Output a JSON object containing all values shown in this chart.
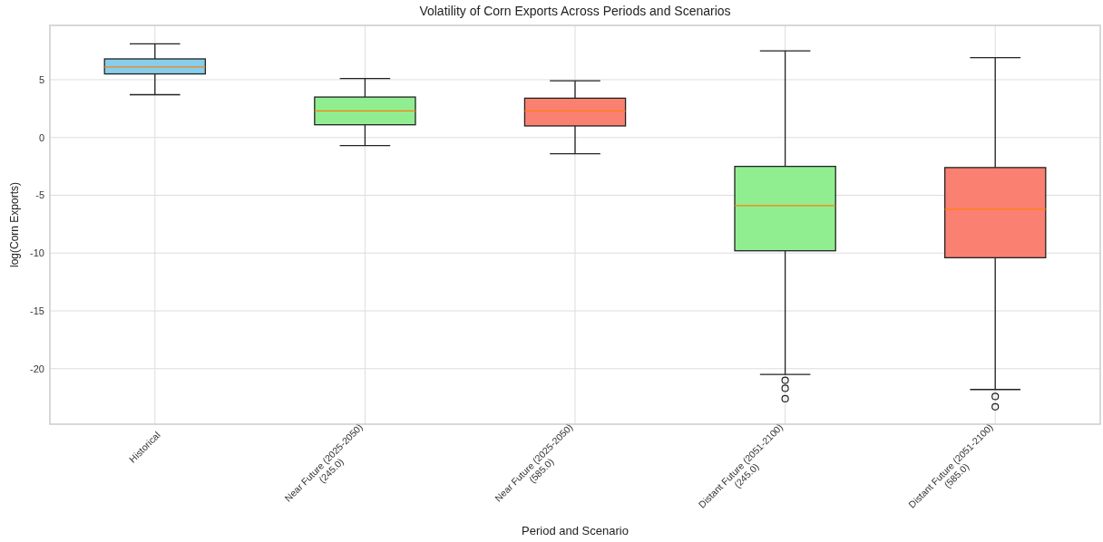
{
  "chart_data": {
    "type": "box",
    "title": "Volatility of Corn Exports Across Periods and Scenarios",
    "xlabel": "Period and Scenario",
    "ylabel": "log(Corn Exports)",
    "categories": [
      "Historical",
      "Near Future (2025-2050)\n(245.0)",
      "Near Future (2025-2050)\n(585.0)",
      "Distant Future (2051-2100)\n(245.0)",
      "Distant Future (2051-2100)\n(585.0)"
    ],
    "colors": [
      "#87ceeb",
      "#90ee90",
      "#fa8072",
      "#90ee90",
      "#fa8072"
    ],
    "boxes": [
      {
        "low": 3.7,
        "q1": 5.5,
        "median": 6.1,
        "q3": 6.8,
        "high": 8.1
      },
      {
        "low": -0.7,
        "q1": 1.1,
        "median": 2.3,
        "q3": 3.5,
        "high": 5.1
      },
      {
        "low": -1.4,
        "q1": 1.0,
        "median": 2.3,
        "q3": 3.4,
        "high": 4.9
      },
      {
        "low": -20.5,
        "q1": -9.8,
        "median": -5.9,
        "q3": -2.5,
        "high": 7.5,
        "outliers": [
          -21.0,
          -21.7,
          -22.6
        ]
      },
      {
        "low": -21.8,
        "q1": -10.4,
        "median": -6.2,
        "q3": -2.6,
        "high": 6.9,
        "outliers": [
          -22.4,
          -23.3
        ]
      }
    ],
    "ylim": [
      -24.8,
      9.7
    ],
    "yticks": [
      -20,
      -15,
      -10,
      -5,
      0,
      5
    ],
    "grid": true
  }
}
